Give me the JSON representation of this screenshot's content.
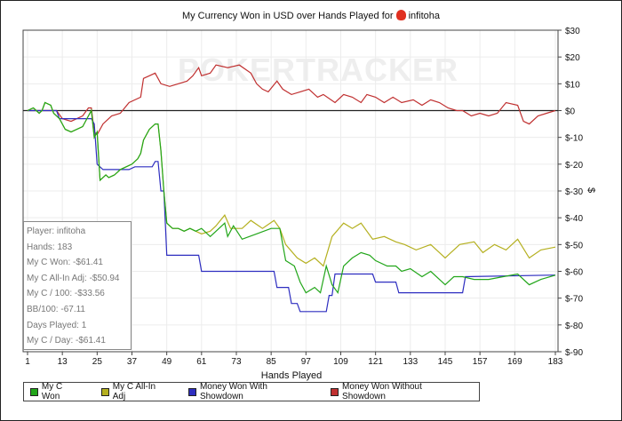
{
  "colors": {
    "green": "#22a61a",
    "yellow": "#b5b020",
    "blue": "#2e2ec0",
    "red": "#c03030"
  },
  "watermark": "POKERTRACKER",
  "stats": [
    "Player: infitoha",
    "Hands: 183",
    "My C Won: -$61.41",
    "My C All-In Adj: -$50.94",
    "My C / 100: -$33.56",
    "BB/100: -67.11",
    "Days Played: 1",
    "My C / Day: -$61.41"
  ],
  "chart_data": {
    "type": "line",
    "title": "My Currency Won in USD over Hands Played for",
    "player": "infitoha",
    "xlabel": "Hands Played",
    "ylabel": "$",
    "xlim": [
      1,
      183
    ],
    "ylim": [
      -90,
      30
    ],
    "xticks": [
      1,
      13,
      25,
      37,
      49,
      61,
      73,
      85,
      97,
      109,
      121,
      133,
      145,
      157,
      169,
      183
    ],
    "yticks": [
      30,
      20,
      10,
      0,
      -10,
      -20,
      -30,
      -40,
      -50,
      -60,
      -70,
      -80,
      -90
    ],
    "ytick_labels": [
      "$30",
      "$20",
      "$10",
      "$0",
      "$-10",
      "$-20",
      "$-30",
      "$-40",
      "$-50",
      "$-60",
      "$-70",
      "$-80",
      "$-90"
    ],
    "grid": true,
    "legend_position": "bottom",
    "series": [
      {
        "name": "My C Won",
        "color": "green",
        "points": [
          [
            1,
            0
          ],
          [
            3,
            1
          ],
          [
            5,
            -1
          ],
          [
            6,
            0
          ],
          [
            7,
            3
          ],
          [
            9,
            2
          ],
          [
            10,
            -1
          ],
          [
            12,
            -3
          ],
          [
            14,
            -7
          ],
          [
            16,
            -8
          ],
          [
            20,
            -6
          ],
          [
            22,
            -2
          ],
          [
            23,
            0
          ],
          [
            24,
            -10
          ],
          [
            25,
            -8
          ],
          [
            26,
            -26
          ],
          [
            28,
            -24
          ],
          [
            29,
            -25
          ],
          [
            31,
            -24
          ],
          [
            33,
            -22
          ],
          [
            35,
            -21
          ],
          [
            37,
            -20
          ],
          [
            39,
            -18
          ],
          [
            40,
            -16
          ],
          [
            41,
            -11
          ],
          [
            43,
            -7
          ],
          [
            45,
            -5
          ],
          [
            46,
            -5
          ],
          [
            47,
            -15
          ],
          [
            48,
            -30
          ],
          [
            49,
            -42
          ],
          [
            51,
            -44
          ],
          [
            53,
            -44
          ],
          [
            55,
            -45
          ],
          [
            57,
            -44
          ],
          [
            59,
            -45
          ],
          [
            61,
            -44
          ],
          [
            64,
            -47
          ],
          [
            66,
            -45
          ],
          [
            69,
            -42
          ],
          [
            70,
            -47
          ],
          [
            72,
            -43
          ],
          [
            75,
            -48
          ],
          [
            80,
            -46
          ],
          [
            85,
            -44
          ],
          [
            88,
            -44
          ],
          [
            90,
            -56
          ],
          [
            93,
            -58
          ],
          [
            95,
            -64
          ],
          [
            97,
            -68
          ],
          [
            100,
            -66
          ],
          [
            102,
            -68
          ],
          [
            104,
            -58
          ],
          [
            106,
            -65
          ],
          [
            108,
            -68
          ],
          [
            110,
            -58
          ],
          [
            113,
            -55
          ],
          [
            116,
            -53
          ],
          [
            119,
            -54
          ],
          [
            121,
            -56
          ],
          [
            125,
            -58
          ],
          [
            128,
            -58
          ],
          [
            130,
            -60
          ],
          [
            133,
            -59
          ],
          [
            137,
            -62
          ],
          [
            140,
            -60
          ],
          [
            143,
            -63
          ],
          [
            145,
            -65
          ],
          [
            148,
            -62
          ],
          [
            151,
            -62
          ],
          [
            155,
            -63
          ],
          [
            160,
            -63
          ],
          [
            165,
            -62
          ],
          [
            170,
            -61
          ],
          [
            174,
            -65
          ],
          [
            178,
            -63
          ],
          [
            183,
            -61.41
          ]
        ]
      },
      {
        "name": "My C All-In Adj",
        "color": "yellow",
        "points": [
          [
            1,
            0
          ],
          [
            3,
            1
          ],
          [
            5,
            -1
          ],
          [
            6,
            0
          ],
          [
            7,
            3
          ],
          [
            9,
            2
          ],
          [
            10,
            -1
          ],
          [
            12,
            -3
          ],
          [
            14,
            -7
          ],
          [
            16,
            -8
          ],
          [
            20,
            -6
          ],
          [
            22,
            -2
          ],
          [
            23,
            0
          ],
          [
            24,
            -10
          ],
          [
            25,
            -8
          ],
          [
            26,
            -26
          ],
          [
            28,
            -24
          ],
          [
            29,
            -25
          ],
          [
            31,
            -24
          ],
          [
            33,
            -22
          ],
          [
            35,
            -21
          ],
          [
            37,
            -20
          ],
          [
            39,
            -18
          ],
          [
            40,
            -16
          ],
          [
            41,
            -11
          ],
          [
            43,
            -7
          ],
          [
            45,
            -5
          ],
          [
            46,
            -5
          ],
          [
            47,
            -15
          ],
          [
            48,
            -30
          ],
          [
            49,
            -42
          ],
          [
            51,
            -44
          ],
          [
            53,
            -44
          ],
          [
            55,
            -45
          ],
          [
            57,
            -44
          ],
          [
            59,
            -45
          ],
          [
            61,
            -46
          ],
          [
            64,
            -45
          ],
          [
            66,
            -43
          ],
          [
            69,
            -39
          ],
          [
            71,
            -44
          ],
          [
            75,
            -44
          ],
          [
            78,
            -41
          ],
          [
            82,
            -44
          ],
          [
            86,
            -41
          ],
          [
            88,
            -44
          ],
          [
            90,
            -50
          ],
          [
            94,
            -55
          ],
          [
            97,
            -57
          ],
          [
            100,
            -55
          ],
          [
            103,
            -58
          ],
          [
            106,
            -47
          ],
          [
            110,
            -42
          ],
          [
            113,
            -44
          ],
          [
            116,
            -42
          ],
          [
            120,
            -48
          ],
          [
            124,
            -47
          ],
          [
            128,
            -49
          ],
          [
            131,
            -50
          ],
          [
            135,
            -52
          ],
          [
            140,
            -50
          ],
          [
            145,
            -55
          ],
          [
            150,
            -50
          ],
          [
            155,
            -49
          ],
          [
            158,
            -53
          ],
          [
            162,
            -50
          ],
          [
            166,
            -52
          ],
          [
            170,
            -48
          ],
          [
            174,
            -55
          ],
          [
            178,
            -52
          ],
          [
            183,
            -50.94
          ]
        ]
      },
      {
        "name": "Money Won With Showdown",
        "color": "blue",
        "points": [
          [
            1,
            0
          ],
          [
            11,
            0
          ],
          [
            12,
            -3
          ],
          [
            23,
            -3
          ],
          [
            24,
            -5
          ],
          [
            25,
            -20
          ],
          [
            27,
            -22
          ],
          [
            36,
            -22
          ],
          [
            38,
            -21
          ],
          [
            44,
            -21
          ],
          [
            45,
            -19
          ],
          [
            46,
            -19
          ],
          [
            47,
            -30
          ],
          [
            48,
            -30
          ],
          [
            49,
            -54
          ],
          [
            60,
            -54
          ],
          [
            61,
            -60
          ],
          [
            86,
            -60
          ],
          [
            87,
            -66
          ],
          [
            91,
            -66
          ],
          [
            92,
            -72
          ],
          [
            94,
            -72
          ],
          [
            95,
            -75
          ],
          [
            104,
            -75
          ],
          [
            105,
            -69
          ],
          [
            106,
            -69
          ],
          [
            107,
            -61
          ],
          [
            120,
            -61
          ],
          [
            121,
            -64
          ],
          [
            128,
            -64
          ],
          [
            129,
            -68
          ],
          [
            151,
            -68
          ],
          [
            152,
            -62
          ],
          [
            183,
            -61.4
          ]
        ]
      },
      {
        "name": "Money Won Without Showdown",
        "color": "red",
        "points": [
          [
            1,
            0
          ],
          [
            11,
            0
          ],
          [
            13,
            -3
          ],
          [
            16,
            -4
          ],
          [
            20,
            -2
          ],
          [
            22,
            1
          ],
          [
            23,
            1
          ],
          [
            24,
            -8
          ],
          [
            25,
            -9
          ],
          [
            27,
            -5
          ],
          [
            30,
            -2
          ],
          [
            33,
            -1
          ],
          [
            36,
            3
          ],
          [
            40,
            5
          ],
          [
            41,
            12
          ],
          [
            43,
            13
          ],
          [
            45,
            14
          ],
          [
            47,
            10
          ],
          [
            50,
            9
          ],
          [
            53,
            10
          ],
          [
            56,
            11
          ],
          [
            58,
            13
          ],
          [
            60,
            16
          ],
          [
            61,
            13
          ],
          [
            64,
            14
          ],
          [
            66,
            17
          ],
          [
            70,
            16
          ],
          [
            74,
            17
          ],
          [
            78,
            14
          ],
          [
            80,
            10
          ],
          [
            82,
            8
          ],
          [
            84,
            7
          ],
          [
            87,
            11
          ],
          [
            89,
            8
          ],
          [
            92,
            6
          ],
          [
            95,
            7
          ],
          [
            98,
            8
          ],
          [
            101,
            5
          ],
          [
            103,
            6
          ],
          [
            107,
            3
          ],
          [
            110,
            6
          ],
          [
            113,
            5
          ],
          [
            116,
            3
          ],
          [
            118,
            6
          ],
          [
            121,
            5
          ],
          [
            124,
            3
          ],
          [
            127,
            5
          ],
          [
            130,
            3
          ],
          [
            134,
            4
          ],
          [
            137,
            2
          ],
          [
            140,
            4
          ],
          [
            143,
            3
          ],
          [
            146,
            1
          ],
          [
            149,
            0
          ],
          [
            151,
            0
          ],
          [
            154,
            -2
          ],
          [
            157,
            -1
          ],
          [
            160,
            -2
          ],
          [
            163,
            -1
          ],
          [
            166,
            3
          ],
          [
            170,
            2
          ],
          [
            172,
            -4
          ],
          [
            174,
            -5
          ],
          [
            177,
            -2
          ],
          [
            180,
            -1
          ],
          [
            183,
            0
          ]
        ]
      }
    ]
  }
}
